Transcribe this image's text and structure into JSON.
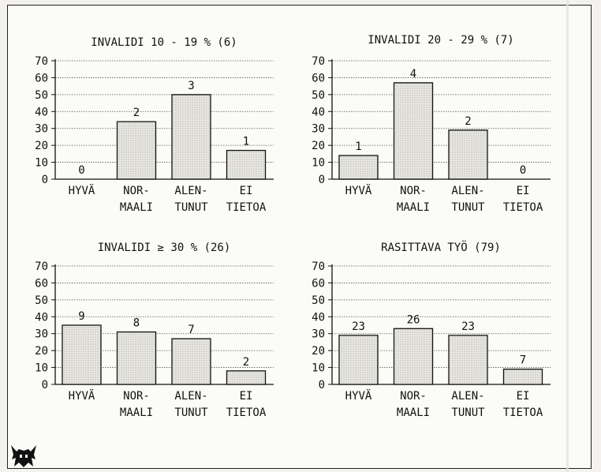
{
  "chart_data": [
    {
      "type": "bar",
      "title": "INVALIDI 10 - 19 % (6)",
      "categories": [
        [
          "HYVÄ"
        ],
        [
          "NOR-",
          "MAALI"
        ],
        [
          "ALEN-",
          "TUNUT"
        ],
        [
          "EI",
          "TIETOA"
        ]
      ],
      "values": [
        0,
        34,
        50,
        17
      ],
      "data_labels": [
        "0",
        "2",
        "3",
        "1"
      ],
      "ylim": [
        0,
        70
      ],
      "yticks": [
        "0",
        "10",
        "20",
        "30",
        "40",
        "50",
        "60",
        "70"
      ],
      "grid": true
    },
    {
      "type": "bar",
      "title": "INVALIDI 20 - 29 % (7)",
      "categories": [
        [
          "HYVÄ"
        ],
        [
          "NOR-",
          "MAALI"
        ],
        [
          "ALEN-",
          "TUNUT"
        ],
        [
          "EI",
          "TIETOA"
        ]
      ],
      "values": [
        14,
        57,
        29,
        0
      ],
      "data_labels": [
        "1",
        "4",
        "2",
        "0"
      ],
      "ylim": [
        0,
        70
      ],
      "yticks": [
        "0",
        "10",
        "20",
        "30",
        "40",
        "50",
        "60",
        "70"
      ],
      "grid": true
    },
    {
      "type": "bar",
      "title": "INVALIDI ≥ 30 % (26)",
      "categories": [
        [
          "HYVÄ"
        ],
        [
          "NOR-",
          "MAALI"
        ],
        [
          "ALEN-",
          "TUNUT"
        ],
        [
          "EI",
          "TIETOA"
        ]
      ],
      "values": [
        35,
        31,
        27,
        8
      ],
      "data_labels": [
        "9",
        "8",
        "7",
        "2"
      ],
      "ylim": [
        0,
        70
      ],
      "yticks": [
        "0",
        "10",
        "20",
        "30",
        "40",
        "50",
        "60",
        "70"
      ],
      "grid": true
    },
    {
      "type": "bar",
      "title": "RASITTAVA TYÖ (79)",
      "categories": [
        [
          "HYVÄ"
        ],
        [
          "NOR-",
          "MAALI"
        ],
        [
          "ALEN-",
          "TUNUT"
        ],
        [
          "EI",
          "TIETOA"
        ]
      ],
      "values": [
        29,
        33,
        29,
        9
      ],
      "data_labels": [
        "23",
        "26",
        "23",
        "7"
      ],
      "ylim": [
        0,
        70
      ],
      "yticks": [
        "0",
        "10",
        "20",
        "30",
        "40",
        "50",
        "60",
        "70"
      ],
      "grid": true
    }
  ],
  "colors": {
    "bar_fill": "#e9e7e1",
    "bar_dots": "#8a8a8a",
    "ink": "#111111",
    "grid": "#555555"
  },
  "icons": {
    "corner_logo": "horned-helmet-icon"
  }
}
